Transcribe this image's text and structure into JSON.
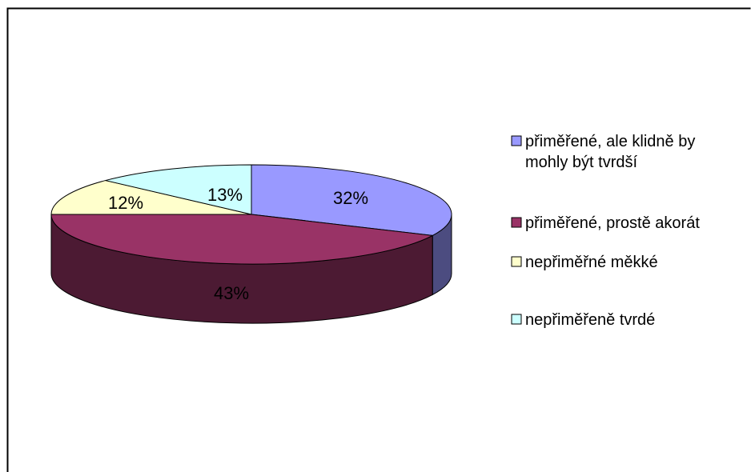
{
  "chart_data": {
    "type": "pie",
    "style": "3d",
    "slices": [
      {
        "label": "přiměřené, ale klidně by mohly být tvrdší",
        "legend_lines": [
          "přiměřené, ale klidně by",
          "mohly být tvrdší"
        ],
        "value": 32,
        "value_label": "32%",
        "color": "#9999ff",
        "side_color": "#4c4c80"
      },
      {
        "label": "přiměřené, prostě akorát",
        "legend_lines": [
          "přiměřené, prostě akorát"
        ],
        "value": 43,
        "value_label": "43%",
        "color": "#993366",
        "side_color": "#4c1a33"
      },
      {
        "label": "nepřiměřné měkké",
        "legend_lines": [
          "nepřiměřné měkké"
        ],
        "value": 12,
        "value_label": "12%",
        "color": "#ffffcc",
        "side_color": "#808066"
      },
      {
        "label": "nepřiměřeně tvrdé",
        "legend_lines": [
          "nepřiměřeně tvrdé"
        ],
        "value": 13,
        "value_label": "13%",
        "color": "#ccffff",
        "side_color": "#668080"
      }
    ],
    "legend_position": "right",
    "title": ""
  }
}
